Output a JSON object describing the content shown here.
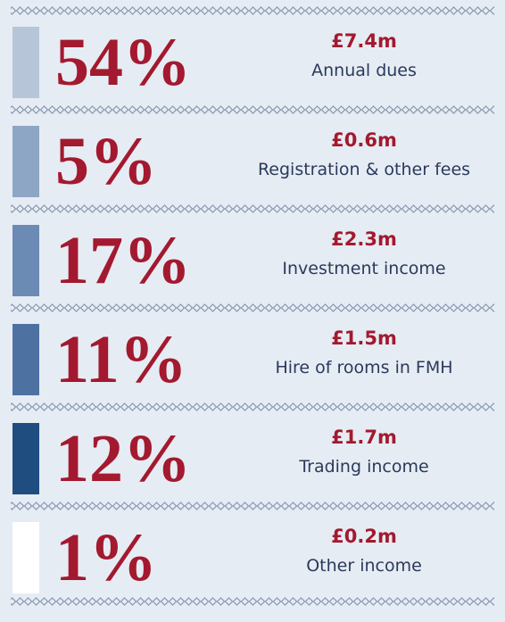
{
  "items": [
    {
      "percent": "54%",
      "amount": "£7.4m",
      "label": "Annual dues",
      "color": "#b7c5d8"
    },
    {
      "percent": "5%",
      "amount": "£0.6m",
      "label": "Registration & other fees",
      "color": "#8ea6c5"
    },
    {
      "percent": "17%",
      "amount": "£2.3m",
      "label": "Investment income",
      "color": "#6c8bb4"
    },
    {
      "percent": "11%",
      "amount": "£1.5m",
      "label": "Hire of rooms in FMH",
      "color": "#4d72a2"
    },
    {
      "percent": "12%",
      "amount": "£1.7m",
      "label": "Trading income",
      "color": "#1f4d7f"
    },
    {
      "percent": "1%",
      "amount": "£0.2m",
      "label": "Other income",
      "color": "#ffffff"
    }
  ]
}
